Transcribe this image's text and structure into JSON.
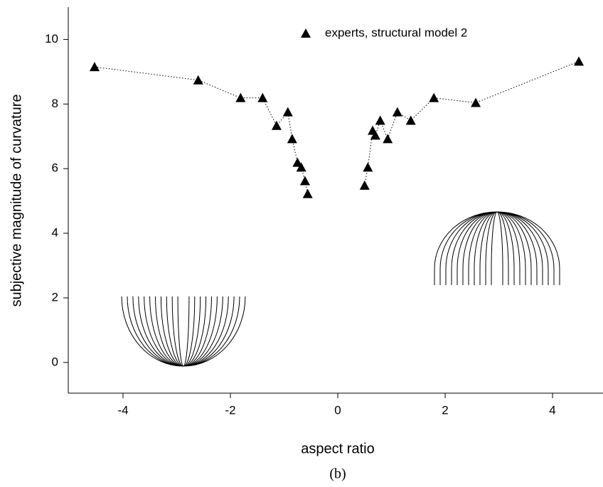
{
  "chart_data": {
    "type": "line",
    "x_label": "aspect ratio",
    "y_label": "subjective magnitude of curvature",
    "caption": "(b)",
    "xlim": [
      -5.02,
      4.94
    ],
    "xticks": [
      -4,
      -2,
      0,
      2,
      4
    ],
    "ylim": [
      -0.95,
      11.0
    ],
    "yticks": [
      0,
      2,
      4,
      6,
      8,
      10
    ],
    "legend": "top",
    "series": [
      {
        "name": "experts, structural model 2",
        "color": "#000000",
        "x": [
          -4.53,
          -2.6,
          -1.81,
          -1.4,
          -1.14,
          -0.93,
          -0.85,
          -0.75,
          -0.68,
          -0.61,
          -0.56,
          null,
          0.5,
          0.56,
          0.65,
          0.7,
          0.79,
          0.93,
          1.11,
          1.36,
          1.79,
          2.57,
          4.49
        ],
        "values": [
          9.15,
          8.74,
          8.19,
          8.19,
          7.33,
          7.75,
          6.92,
          6.19,
          6.04,
          5.62,
          5.22,
          null,
          5.48,
          6.04,
          7.18,
          7.03,
          7.49,
          6.92,
          7.75,
          7.49,
          8.19,
          8.04,
          9.32
        ]
      }
    ]
  }
}
